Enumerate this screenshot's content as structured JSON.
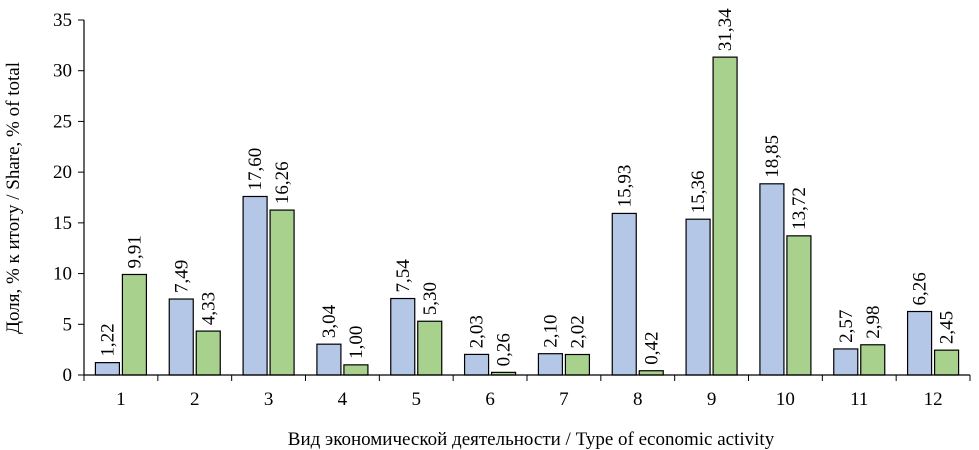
{
  "chart_data": {
    "type": "bar",
    "categories": [
      "1",
      "2",
      "3",
      "4",
      "5",
      "6",
      "7",
      "8",
      "9",
      "10",
      "11",
      "12"
    ],
    "series": [
      {
        "color": "#b4c7e7",
        "values": [
          1.22,
          7.49,
          17.6,
          3.04,
          7.54,
          2.03,
          2.1,
          15.93,
          15.36,
          18.85,
          2.57,
          6.26
        ]
      },
      {
        "color": "#a9d18e",
        "values": [
          9.91,
          4.33,
          16.26,
          1.0,
          5.3,
          0.26,
          2.02,
          0.42,
          31.34,
          13.72,
          2.98,
          2.45
        ]
      }
    ],
    "series_labels": [
      [
        "1,22",
        "7,49",
        "17,60",
        "3,04",
        "7,54",
        "2,03",
        "2,10",
        "15,93",
        "15,36",
        "18,85",
        "2,57",
        "6,26"
      ],
      [
        "9,91",
        "4,33",
        "16,26",
        "1,00",
        "5,30",
        "0,26",
        "2,02",
        "0,42",
        "31,34",
        "13,72",
        "2,98",
        "2,45"
      ]
    ],
    "y_ticks": [
      0,
      5,
      10,
      15,
      20,
      25,
      30,
      35
    ],
    "ylim": [
      0,
      35
    ],
    "xlabel": "Вид экономической деятельности / Type of economic activity",
    "ylabel": "Доля, % к итогу / Share, % of total",
    "grid": false,
    "legend": "none"
  }
}
